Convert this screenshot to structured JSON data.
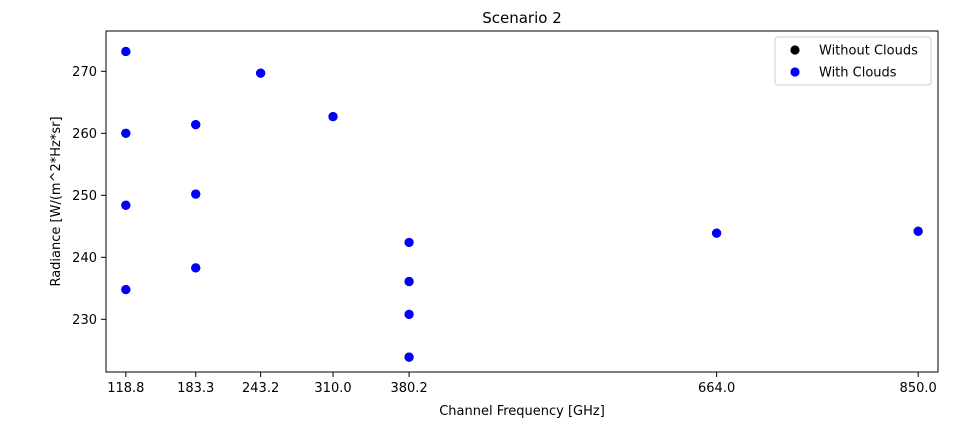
{
  "chart_data": {
    "type": "scatter",
    "title": "Scenario 2",
    "xlabel": "Channel Frequency [GHz]",
    "ylabel": "Radiance [W/(m^2*Hz*sr]",
    "x_scale": "categorical-ticks",
    "x_ticks": [
      "118.8",
      "183.3",
      "243.2",
      "310.0",
      "380.2",
      "664.0",
      "850.0"
    ],
    "y_ticks": [
      "230",
      "240",
      "250",
      "260",
      "270"
    ],
    "ylim": [
      221.5,
      276.5
    ],
    "grid": false,
    "legend_position": "top-right",
    "series": [
      {
        "name": "Without Clouds",
        "color": "#000000",
        "x": [
          "118.8",
          "118.8",
          "118.8",
          "118.8",
          "183.3",
          "183.3",
          "183.3",
          "243.2",
          "310.0",
          "380.2",
          "380.2",
          "380.2",
          "380.2",
          "664.0",
          "850.0"
        ],
        "y": [
          273.2,
          260.0,
          248.4,
          234.8,
          261.4,
          250.2,
          238.3,
          269.7,
          262.7,
          242.4,
          236.1,
          230.8,
          223.9,
          243.9,
          244.2
        ]
      },
      {
        "name": "With Clouds",
        "color": "#0000ff",
        "x": [
          "118.8",
          "118.8",
          "118.8",
          "118.8",
          "183.3",
          "183.3",
          "183.3",
          "243.2",
          "310.0",
          "380.2",
          "380.2",
          "380.2",
          "380.2",
          "664.0",
          "850.0"
        ],
        "y": [
          273.2,
          260.0,
          248.4,
          234.8,
          261.4,
          250.2,
          238.3,
          269.7,
          262.7,
          242.4,
          236.1,
          230.8,
          223.9,
          243.9,
          244.2
        ]
      }
    ]
  }
}
